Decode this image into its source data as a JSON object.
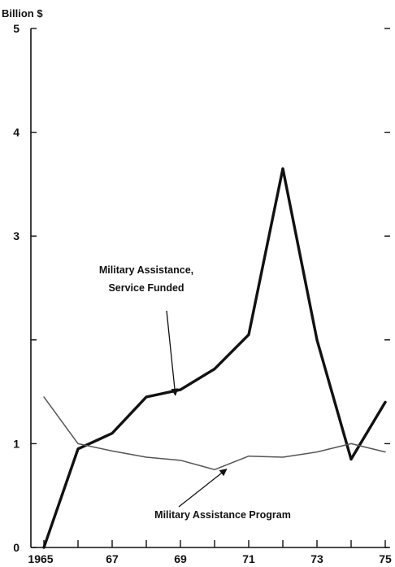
{
  "chart_data": {
    "type": "line",
    "title": "",
    "xlabel": "",
    "ylabel": "Billion $",
    "x": [
      1965,
      1966,
      1967,
      1968,
      1969,
      1970,
      1971,
      1972,
      1973,
      1974,
      1975
    ],
    "x_tick_labels": [
      "1965",
      "67",
      "69",
      "71",
      "73",
      "75"
    ],
    "x_tick_values": [
      1965,
      1967,
      1969,
      1971,
      1973,
      1975
    ],
    "y_tick_labels": [
      "0",
      "1",
      "3",
      "4",
      "5"
    ],
    "y_tick_values": [
      0,
      1,
      3,
      4,
      5
    ],
    "xlim": [
      1965,
      1975
    ],
    "ylim": [
      0,
      5
    ],
    "grid": false,
    "series": [
      {
        "name": "Military Assistance, Service Funded",
        "values": [
          0,
          0.95,
          1.1,
          1.45,
          1.52,
          1.72,
          2.05,
          3.65,
          2.0,
          0.85,
          1.4
        ],
        "color": "#111111",
        "weight": "heavy"
      },
      {
        "name": "Military Assistance Program",
        "values": [
          1.45,
          1.0,
          0.93,
          0.87,
          0.84,
          0.75,
          0.88,
          0.87,
          0.92,
          1.0,
          0.92
        ],
        "color": "#555555",
        "weight": "light"
      }
    ],
    "annotations": [
      {
        "lines": [
          "Military Assistance,",
          "Service Funded"
        ],
        "series": 0,
        "points_to_x": 1968.9
      },
      {
        "lines": [
          "Military Assistance Program"
        ],
        "series": 1,
        "points_to_x": 1970.4
      }
    ]
  }
}
